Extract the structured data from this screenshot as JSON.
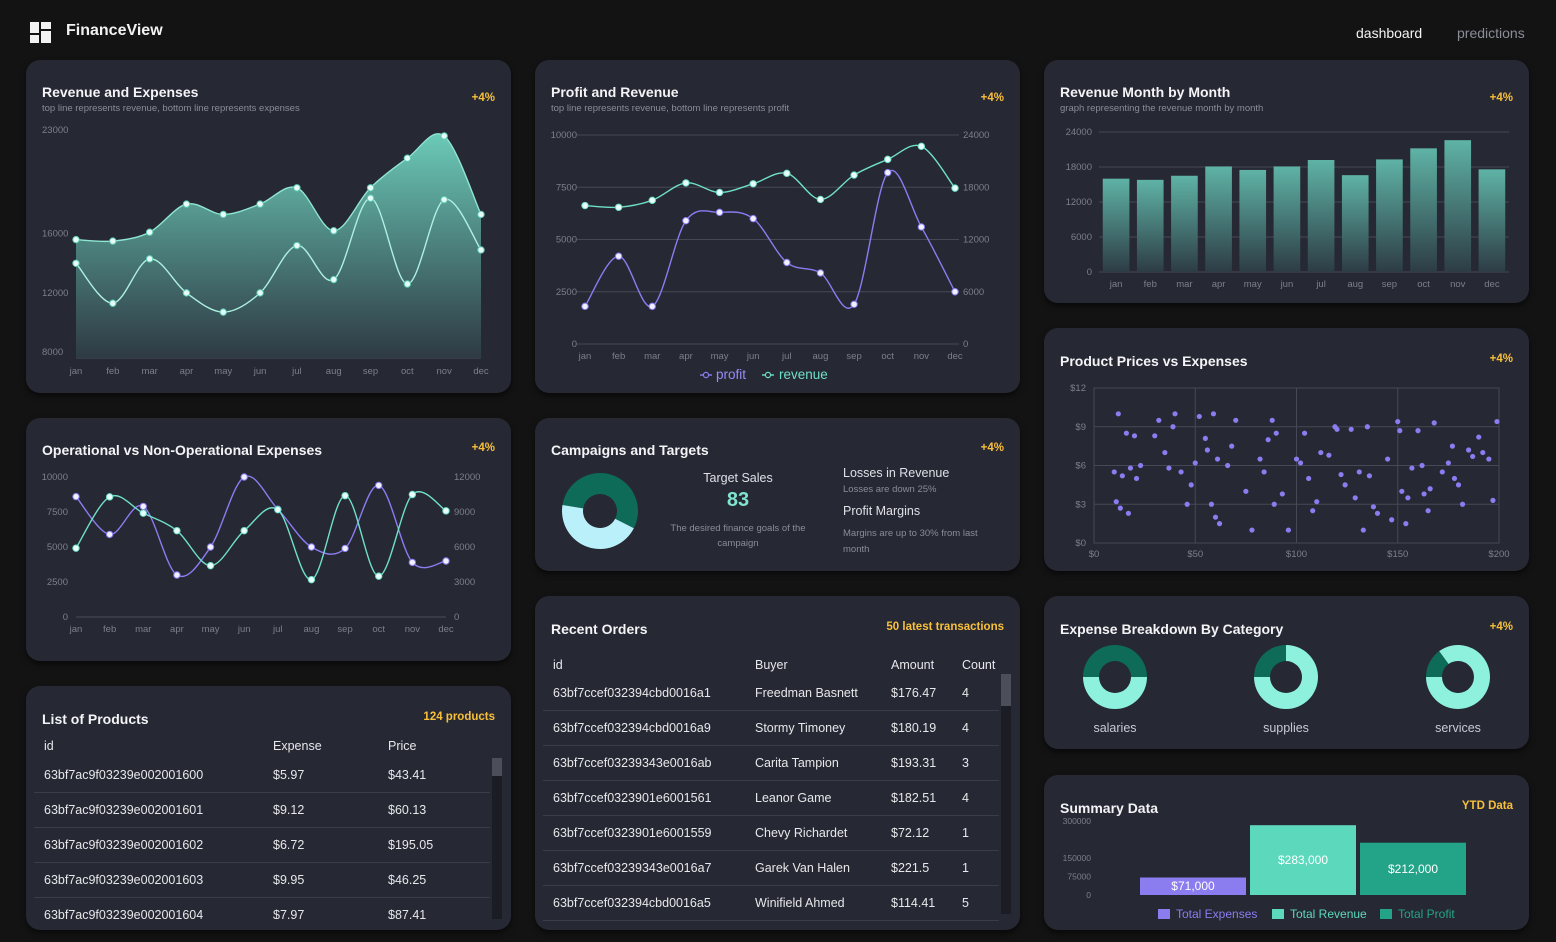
{
  "app": {
    "brand": "FinanceView",
    "nav": [
      "dashboard",
      "predictions"
    ]
  },
  "colors": {
    "accent": "#f8c03a",
    "teal": "#7fe3cf",
    "purple": "#8b7cf0",
    "card": "#262834",
    "bg": "#131313"
  },
  "months": [
    "jan",
    "feb",
    "mar",
    "apr",
    "may",
    "jun",
    "jul",
    "aug",
    "sep",
    "oct",
    "nov",
    "dec"
  ],
  "revenue_expenses": {
    "title": "Revenue and Expenses",
    "subtitle": "top line represents revenue, bottom line represents expenses",
    "badge": "+4%",
    "chart_data": {
      "type": "area",
      "y_ticks": [
        "23000",
        "16000",
        "12000",
        "8000"
      ],
      "ylim": [
        8000,
        23000
      ],
      "series": [
        {
          "values": [
            16000,
            15900,
            16500,
            18400,
            17700,
            18400,
            19500,
            16600,
            19500,
            21500,
            23000,
            17700
          ]
        },
        {
          "values": [
            14400,
            11700,
            14700,
            12400,
            11100,
            12400,
            15600,
            13300,
            18800,
            13000,
            18700,
            15300
          ]
        }
      ]
    }
  },
  "profit_revenue": {
    "title": "Profit and Revenue",
    "subtitle": "top line represents revenue, bottom line represents profit",
    "badge": "+4%",
    "chart_data": {
      "type": "line",
      "y_left_ticks": [
        "10000",
        "7500",
        "5000",
        "2500",
        "0"
      ],
      "y_right_ticks": [
        "24000",
        "18000",
        "12000",
        "6000",
        "0"
      ],
      "series": [
        {
          "name": "profit",
          "values": [
            1800,
            4200,
            1800,
            5900,
            6300,
            6000,
            3900,
            3400,
            1900,
            8200,
            5600,
            2500
          ]
        },
        {
          "name": "revenue",
          "values": [
            15900,
            15700,
            16500,
            18500,
            17400,
            18400,
            19600,
            16600,
            19400,
            21200,
            22700,
            17900
          ]
        }
      ]
    }
  },
  "revenue_monthly": {
    "title": "Revenue Month by Month",
    "subtitle": "graph representing the revenue month by month",
    "badge": "+4%",
    "chart_data": {
      "type": "bar",
      "y_ticks": [
        "24000",
        "18000",
        "12000",
        "6000",
        "0"
      ],
      "ylim": [
        0,
        24000
      ],
      "values": [
        16000,
        15800,
        16500,
        18100,
        17500,
        18100,
        19200,
        16600,
        19300,
        21200,
        22600,
        17600
      ]
    }
  },
  "op_nonop": {
    "title": "Operational vs Non-Operational Expenses",
    "badge": "+4%",
    "chart_data": {
      "type": "line",
      "y_left_ticks": [
        "10000",
        "7500",
        "5000",
        "2500",
        "0"
      ],
      "y_right_ticks": [
        "12000",
        "9000",
        "6000",
        "3000",
        "0"
      ],
      "series": [
        {
          "values": [
            8600,
            5900,
            7900,
            3000,
            5000,
            10000,
            7700,
            5000,
            4900,
            9400,
            3900,
            4000
          ]
        },
        {
          "values": [
            5900,
            10300,
            8900,
            7400,
            4400,
            7400,
            9200,
            3200,
            10400,
            3500,
            10500,
            9100
          ]
        }
      ]
    }
  },
  "campaigns": {
    "title": "Campaigns and Targets",
    "badge": "+4%",
    "target_label": "Target Sales",
    "target_value": "83",
    "target_desc": "The desired finance goals of the campaign",
    "losses_title": "Losses in Revenue",
    "losses_desc": "Losses are down 25%",
    "margins_title": "Profit Margins",
    "margins_desc": "Margins are up to 30% from last month",
    "chart_data": {
      "type": "pie",
      "values": [
        55,
        45
      ]
    }
  },
  "scatter": {
    "title": "Product Prices vs Expenses",
    "badge": "+4%",
    "chart_data": {
      "type": "scatter",
      "x_ticks": [
        "$0",
        "$50",
        "$100",
        "$150",
        "$200"
      ],
      "y_ticks": [
        "$12",
        "$9",
        "$6",
        "$3",
        "$0"
      ],
      "xlim": [
        0,
        200
      ],
      "ylim": [
        0,
        12
      ],
      "points": [
        [
          12,
          10
        ],
        [
          16,
          8.5
        ],
        [
          20,
          8.3
        ],
        [
          10,
          5.5
        ],
        [
          14,
          5.2
        ],
        [
          18,
          5.8
        ],
        [
          11,
          3.2
        ],
        [
          13,
          2.7
        ],
        [
          17,
          2.3
        ],
        [
          21,
          5
        ],
        [
          23,
          6
        ],
        [
          30,
          8.3
        ],
        [
          32,
          9.5
        ],
        [
          35,
          7
        ],
        [
          37,
          5.8
        ],
        [
          39,
          9
        ],
        [
          40,
          10
        ],
        [
          43,
          5.5
        ],
        [
          46,
          3
        ],
        [
          48,
          4.5
        ],
        [
          50,
          6.2
        ],
        [
          52,
          9.8
        ],
        [
          55,
          8.1
        ],
        [
          56,
          7.2
        ],
        [
          59,
          10
        ],
        [
          61,
          6.5
        ],
        [
          58,
          3
        ],
        [
          60,
          2
        ],
        [
          62,
          1.5
        ],
        [
          66,
          6
        ],
        [
          68,
          7.5
        ],
        [
          70,
          9.5
        ],
        [
          75,
          4
        ],
        [
          78,
          1
        ],
        [
          82,
          6.5
        ],
        [
          84,
          5.5
        ],
        [
          86,
          8
        ],
        [
          88,
          9.5
        ],
        [
          90,
          8.5
        ],
        [
          89,
          3
        ],
        [
          93,
          3.8
        ],
        [
          96,
          1
        ],
        [
          100,
          6.5
        ],
        [
          102,
          6.2
        ],
        [
          104,
          8.5
        ],
        [
          106,
          5
        ],
        [
          108,
          2.5
        ],
        [
          110,
          3.2
        ],
        [
          112,
          7
        ],
        [
          116,
          6.8
        ],
        [
          119,
          9
        ],
        [
          120,
          8.8
        ],
        [
          122,
          5.3
        ],
        [
          124,
          4.5
        ],
        [
          127,
          8.8
        ],
        [
          129,
          3.5
        ],
        [
          131,
          5.5
        ],
        [
          133,
          1
        ],
        [
          135,
          9
        ],
        [
          136,
          5.2
        ],
        [
          138,
          2.8
        ],
        [
          140,
          2.3
        ],
        [
          145,
          6.5
        ],
        [
          147,
          1.8
        ],
        [
          150,
          9.4
        ],
        [
          151,
          8.7
        ],
        [
          152,
          4
        ],
        [
          154,
          1.5
        ],
        [
          155,
          3.5
        ],
        [
          157,
          5.8
        ],
        [
          160,
          8.7
        ],
        [
          162,
          6
        ],
        [
          163,
          3.8
        ],
        [
          165,
          2.5
        ],
        [
          166,
          4.2
        ],
        [
          168,
          9.3
        ],
        [
          172,
          5.5
        ],
        [
          175,
          6.2
        ],
        [
          177,
          7.5
        ],
        [
          178,
          5
        ],
        [
          180,
          4.5
        ],
        [
          182,
          3
        ],
        [
          185,
          7.2
        ],
        [
          187,
          6.7
        ],
        [
          190,
          8.2
        ],
        [
          192,
          7
        ],
        [
          195,
          6.5
        ],
        [
          197,
          3.3
        ],
        [
          199,
          9.4
        ]
      ]
    }
  },
  "orders": {
    "title": "Recent Orders",
    "badge": "50 latest transactions",
    "columns": [
      "id",
      "Buyer",
      "Amount",
      "Count"
    ],
    "rows": [
      [
        "63bf7ccef032394cbd0016a1",
        "Freedman Basnett",
        "$176.47",
        "4"
      ],
      [
        "63bf7ccef032394cbd0016a9",
        "Stormy Timoney",
        "$180.19",
        "4"
      ],
      [
        "63bf7ccef03239343e0016ab",
        "Carita Tampion",
        "$193.31",
        "3"
      ],
      [
        "63bf7ccef0323901e6001561",
        "Leanor Game",
        "$182.51",
        "4"
      ],
      [
        "63bf7ccef0323901e6001559",
        "Chevy Richardet",
        "$72.12",
        "1"
      ],
      [
        "63bf7ccef03239343e0016a7",
        "Garek Van Halen",
        "$221.5",
        "1"
      ],
      [
        "63bf7ccef032394cbd0016a5",
        "Winifield Ahmed",
        "$114.41",
        "5"
      ]
    ]
  },
  "products": {
    "title": "List of Products",
    "badge": "124 products",
    "columns": [
      "id",
      "Expense",
      "Price"
    ],
    "rows": [
      [
        "63bf7ac9f03239e002001600",
        "$5.97",
        "$43.41"
      ],
      [
        "63bf7ac9f03239e002001601",
        "$9.12",
        "$60.13"
      ],
      [
        "63bf7ac9f03239e002001602",
        "$6.72",
        "$195.05"
      ],
      [
        "63bf7ac9f03239e002001603",
        "$9.95",
        "$46.25"
      ],
      [
        "63bf7ac9f03239e002001604",
        "$7.97",
        "$87.41"
      ]
    ]
  },
  "breakdown": {
    "title": "Expense Breakdown By Category",
    "badge": "+4%",
    "chart_data": {
      "type": "pie",
      "categories": [
        "salaries",
        "supplies",
        "services"
      ],
      "dark_share": [
        0.5,
        0.25,
        0.15
      ]
    }
  },
  "summary": {
    "title": "Summary Data",
    "badge": "YTD Data",
    "chart_data": {
      "type": "bar",
      "y_ticks": [
        "300000",
        "150000",
        "75000",
        "0"
      ],
      "ylim": [
        0,
        300000
      ],
      "series": [
        {
          "name": "Total Expenses",
          "value": 71000,
          "label": "$71,000",
          "color": "#8b7cf0"
        },
        {
          "name": "Total Revenue",
          "value": 283000,
          "label": "$283,000",
          "color": "#5cd9bc"
        },
        {
          "name": "Total Profit",
          "value": 212000,
          "label": "$212,000",
          "color": "#23a488"
        }
      ]
    }
  }
}
